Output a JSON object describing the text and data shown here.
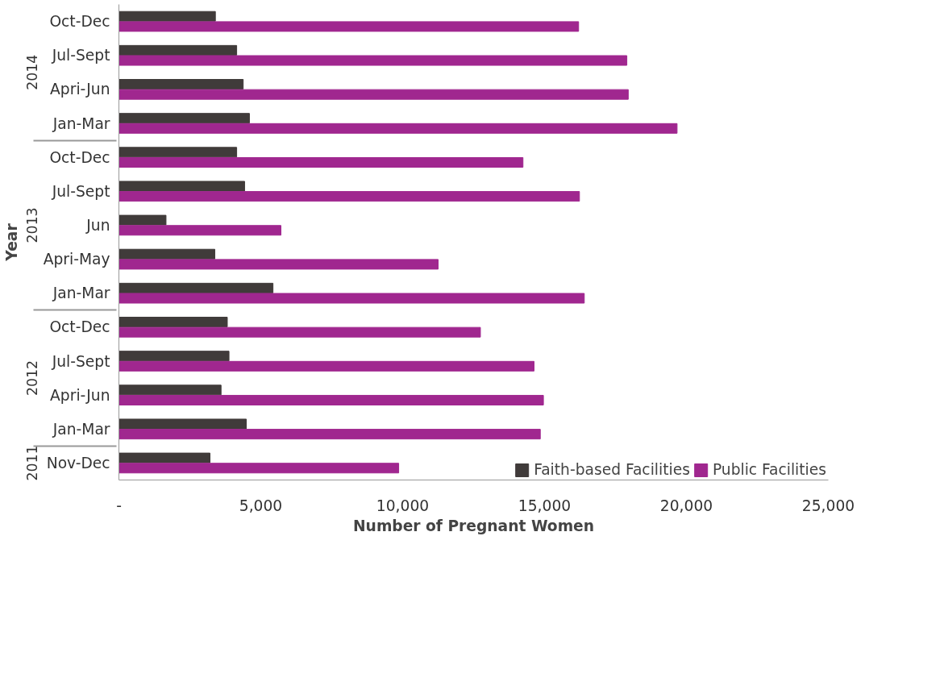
{
  "chart_data": {
    "type": "bar",
    "orientation": "horizontal",
    "xlabel": "Number of Pregnant Women",
    "ylabel": "Year",
    "categories": [
      "Oct-Dec",
      "Jul-Sept",
      "Apri-Jun",
      "Jan-Mar",
      "Oct-Dec",
      "Jul-Sept",
      "Jun",
      "Apri-May",
      "Jan-Mar",
      "Oct-Dec",
      "Jul-Sept",
      "Apri-Jun",
      "Jan-Mar",
      "Nov-Dec"
    ],
    "annotations": [
      "2014",
      "2013",
      "2012",
      "2011"
    ],
    "series": [
      {
        "name": "Faith-based Facilities",
        "color": "#403b3a",
        "values": [
          3400,
          4150,
          4380,
          4600,
          4150,
          4430,
          1660,
          3380,
          5430,
          3820,
          3880,
          3600,
          4490,
          3210
        ]
      },
      {
        "name": "Public Facilities",
        "color": "#a0278f",
        "values": [
          16200,
          17900,
          17950,
          19670,
          14240,
          16230,
          5710,
          11250,
          16400,
          12740,
          14630,
          14960,
          14850,
          9860
        ]
      }
    ],
    "xlim": [
      0,
      25000
    ],
    "xticks": [
      {
        "value": 0,
        "label": "-"
      },
      {
        "value": 5000,
        "label": "5,000"
      },
      {
        "value": 10000,
        "label": "10,000"
      },
      {
        "value": 15000,
        "label": "15,000"
      },
      {
        "value": 20000,
        "label": "20,000"
      },
      {
        "value": 25000,
        "label": "25,000"
      }
    ],
    "grid": false,
    "legend": "bottom right"
  }
}
